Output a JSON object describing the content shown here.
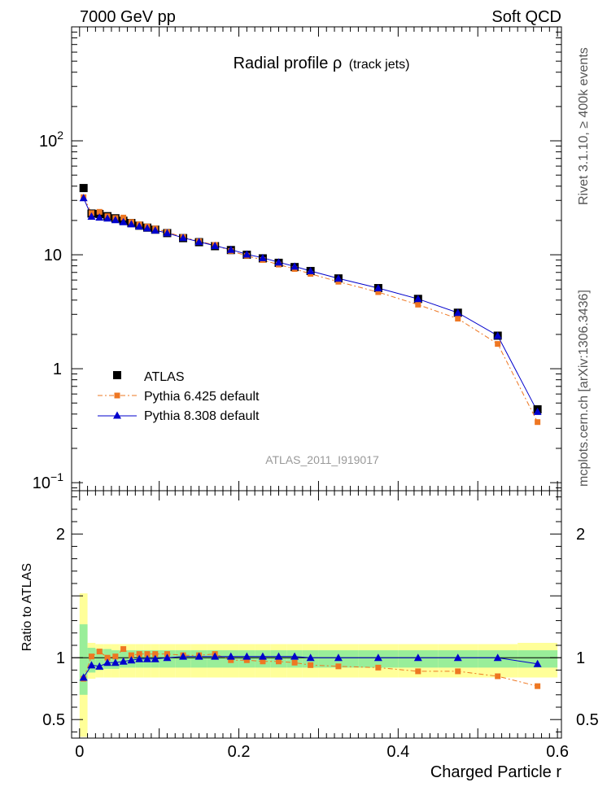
{
  "header": {
    "left": "7000 GeV pp",
    "right": "Soft QCD"
  },
  "side_labels": {
    "rivet": "Rivet 3.1.10, ≥ 400k events",
    "mcplots": "mcplots.cern.ch [arXiv:1306.3436]"
  },
  "watermark": "ATLAS_2011_I919017",
  "chart_data": [
    {
      "type": "scatter",
      "panel": "main",
      "title_main": "Radial profile  ρ",
      "title_sub": "(track jets)",
      "xlabel": "Charged Particle r",
      "ylabel": "",
      "yscale": "log",
      "xlim": [
        -0.01,
        0.605
      ],
      "ylim": [
        0.085,
        1000
      ],
      "x_ticks": [
        "0",
        "0.2",
        "0.4",
        "0.6"
      ],
      "y_ticks": [
        {
          "v": 0.1,
          "label": "10",
          "sup": "−1"
        },
        {
          "v": 1,
          "label": "1",
          "sup": ""
        },
        {
          "v": 10,
          "label": "10",
          "sup": ""
        },
        {
          "v": 100,
          "label": "10",
          "sup": "2"
        }
      ],
      "legend_position": "bottom-left",
      "x": [
        0.005,
        0.015,
        0.025,
        0.035,
        0.045,
        0.055,
        0.065,
        0.075,
        0.085,
        0.095,
        0.11,
        0.13,
        0.15,
        0.17,
        0.19,
        0.21,
        0.23,
        0.25,
        0.27,
        0.29,
        0.325,
        0.375,
        0.425,
        0.475,
        0.525,
        0.575
      ],
      "series": [
        {
          "name": "ATLAS",
          "color": "#000000",
          "marker": "square",
          "values": [
            38.5,
            23.0,
            22.8,
            21.8,
            20.9,
            19.9,
            19.0,
            18.0,
            17.3,
            16.6,
            15.5,
            14.0,
            12.9,
            11.9,
            11.0,
            10.0,
            9.3,
            8.5,
            7.8,
            7.2,
            6.2,
            5.1,
            4.1,
            3.1,
            1.95,
            0.44
          ]
        },
        {
          "name": "Pythia 6.425 default",
          "color": "#ee7722",
          "marker": "square-small",
          "dash": "6,3,2,3",
          "values": [
            32.0,
            23.2,
            23.8,
            21.8,
            21.0,
            21.2,
            19.4,
            18.5,
            17.7,
            17.0,
            15.8,
            14.3,
            13.1,
            12.2,
            10.8,
            9.8,
            9.0,
            8.2,
            7.5,
            6.8,
            5.8,
            4.7,
            3.65,
            2.75,
            1.65,
            0.34
          ]
        },
        {
          "name": "Pythia 8.308 default",
          "color": "#0000cc",
          "marker": "triangle",
          "values": [
            31.5,
            21.7,
            21.3,
            20.9,
            20.2,
            19.4,
            18.6,
            17.8,
            17.1,
            16.4,
            15.5,
            14.1,
            13.0,
            12.0,
            11.1,
            10.1,
            9.4,
            8.6,
            7.9,
            7.2,
            6.2,
            5.1,
            4.1,
            3.1,
            1.95,
            0.42
          ]
        }
      ]
    },
    {
      "type": "scatter",
      "panel": "ratio",
      "xlabel": "Charged Particle r",
      "ylabel": "Ratio to ATLAS",
      "xlim": [
        -0.01,
        0.605
      ],
      "ylim": [
        0.35,
        2.35
      ],
      "y_ticks": [
        "0.5",
        "1",
        "2"
      ],
      "bands": {
        "edges": [
          0.0,
          0.01,
          0.02,
          0.03,
          0.04,
          0.05,
          0.06,
          0.07,
          0.08,
          0.09,
          0.1,
          0.12,
          0.14,
          0.16,
          0.18,
          0.2,
          0.22,
          0.24,
          0.26,
          0.28,
          0.3,
          0.35,
          0.4,
          0.45,
          0.5,
          0.55,
          0.6
        ],
        "inner_lo": [
          0.7,
          0.88,
          0.9,
          0.91,
          0.91,
          0.92,
          0.92,
          0.92,
          0.92,
          0.92,
          0.92,
          0.92,
          0.92,
          0.92,
          0.92,
          0.92,
          0.92,
          0.92,
          0.92,
          0.92,
          0.92,
          0.92,
          0.92,
          0.92,
          0.92,
          0.92
        ],
        "inner_hi": [
          1.27,
          1.08,
          1.07,
          1.07,
          1.06,
          1.06,
          1.06,
          1.06,
          1.06,
          1.06,
          1.06,
          1.06,
          1.06,
          1.06,
          1.06,
          1.06,
          1.06,
          1.06,
          1.06,
          1.06,
          1.06,
          1.06,
          1.06,
          1.06,
          1.06,
          1.06
        ],
        "outer_lo": [
          0.36,
          0.83,
          0.84,
          0.84,
          0.84,
          0.84,
          0.84,
          0.84,
          0.84,
          0.84,
          0.84,
          0.84,
          0.84,
          0.84,
          0.84,
          0.84,
          0.84,
          0.84,
          0.84,
          0.84,
          0.84,
          0.84,
          0.84,
          0.84,
          0.84,
          0.84
        ],
        "outer_hi": [
          1.52,
          1.12,
          1.11,
          1.11,
          1.11,
          1.11,
          1.11,
          1.11,
          1.11,
          1.11,
          1.11,
          1.11,
          1.11,
          1.11,
          1.11,
          1.11,
          1.11,
          1.11,
          1.11,
          1.11,
          1.11,
          1.11,
          1.11,
          1.11,
          1.11,
          1.12
        ],
        "inner_color": "#99ee99",
        "outer_color": "#ffff99"
      },
      "series": [
        {
          "name": "Pythia 6.425 default",
          "color": "#ee7722",
          "values": [
            0.83,
            1.01,
            1.05,
            1.0,
            1.01,
            1.07,
            1.02,
            1.03,
            1.03,
            1.03,
            1.03,
            1.02,
            1.02,
            1.03,
            0.98,
            0.98,
            0.97,
            0.97,
            0.96,
            0.94,
            0.93,
            0.92,
            0.89,
            0.89,
            0.85,
            0.77
          ]
        },
        {
          "name": "Pythia 8.308 default",
          "color": "#0000cc",
          "values": [
            0.84,
            0.94,
            0.93,
            0.96,
            0.96,
            0.97,
            0.98,
            0.99,
            0.99,
            0.99,
            1.0,
            1.01,
            1.01,
            1.01,
            1.01,
            1.01,
            1.01,
            1.01,
            1.01,
            1.0,
            1.0,
            1.0,
            1.0,
            1.0,
            1.0,
            0.95
          ]
        }
      ]
    }
  ]
}
